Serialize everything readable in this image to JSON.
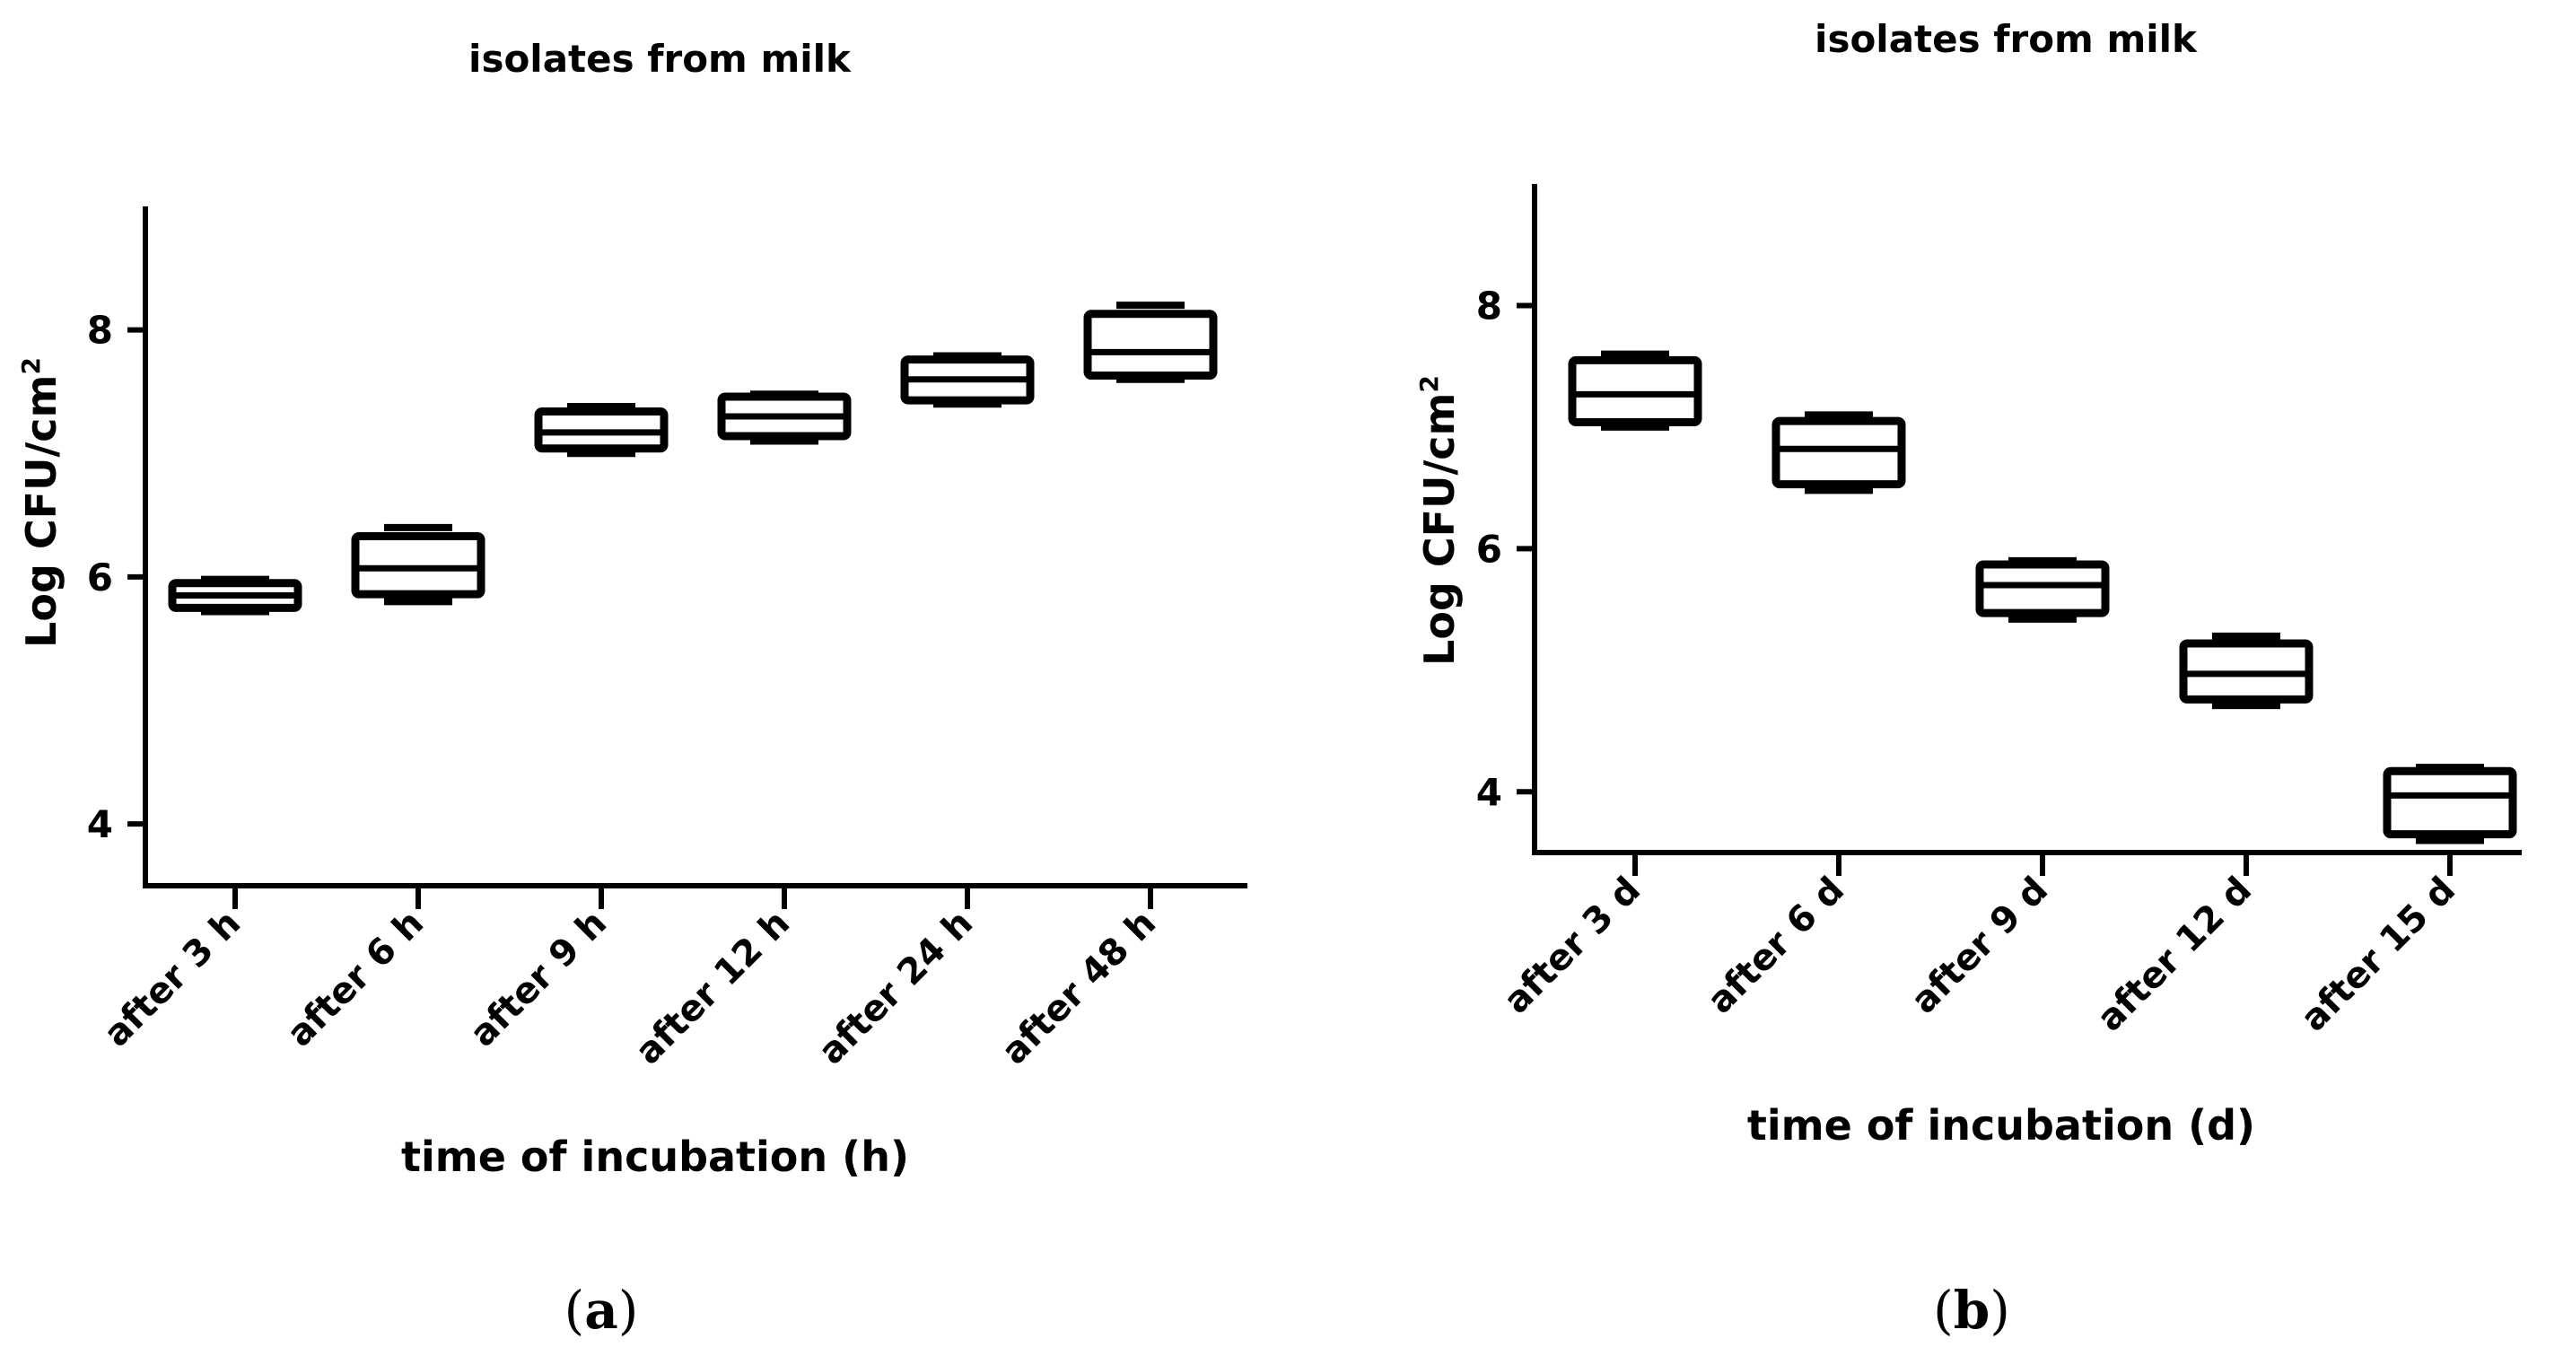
{
  "chart_data": [
    {
      "type": "box",
      "panel_label": "a",
      "title": "isolates from milk",
      "xlabel": "time of incubation (h)",
      "ylabel": "Log CFU/cm",
      "ylabel_superscript": "2",
      "ylim": [
        3.5,
        9.0
      ],
      "yticks": [
        4,
        6,
        8
      ],
      "categories": [
        "after 3 h",
        "after 6 h",
        "after 9 h",
        "after 12 h",
        "after 24 h",
        "after 48 h"
      ],
      "boxes": [
        {
          "min": 5.72,
          "q1": 5.75,
          "median": 5.85,
          "q3": 5.95,
          "max": 5.98
        },
        {
          "min": 5.8,
          "q1": 5.86,
          "median": 6.07,
          "q3": 6.33,
          "max": 6.4
        },
        {
          "min": 7.0,
          "q1": 7.04,
          "median": 7.17,
          "q3": 7.34,
          "max": 7.38
        },
        {
          "min": 7.1,
          "q1": 7.14,
          "median": 7.3,
          "q3": 7.46,
          "max": 7.48
        },
        {
          "min": 7.4,
          "q1": 7.43,
          "median": 7.6,
          "q3": 7.76,
          "max": 7.79
        },
        {
          "min": 7.6,
          "q1": 7.63,
          "median": 7.82,
          "q3": 8.13,
          "max": 8.2
        }
      ]
    },
    {
      "type": "box",
      "panel_label": "b",
      "title": "isolates from milk",
      "xlabel": "time of incubation (d)",
      "ylabel": "Log CFU/cm",
      "ylabel_superscript": "2",
      "ylim": [
        3.5,
        9.0
      ],
      "yticks": [
        4,
        6,
        8
      ],
      "categories": [
        "after 3 d",
        "after 6 d",
        "after 9 d",
        "after 12 d",
        "after 15 d"
      ],
      "boxes": [
        {
          "min": 7.0,
          "q1": 7.04,
          "median": 7.27,
          "q3": 7.55,
          "max": 7.6
        },
        {
          "min": 6.48,
          "q1": 6.53,
          "median": 6.82,
          "q3": 7.05,
          "max": 7.1
        },
        {
          "min": 5.42,
          "q1": 5.47,
          "median": 5.7,
          "q3": 5.87,
          "max": 5.9
        },
        {
          "min": 4.71,
          "q1": 4.76,
          "median": 4.97,
          "q3": 5.22,
          "max": 5.28
        },
        {
          "min": 3.6,
          "q1": 3.65,
          "median": 3.97,
          "q3": 4.17,
          "max": 4.2
        }
      ]
    }
  ]
}
